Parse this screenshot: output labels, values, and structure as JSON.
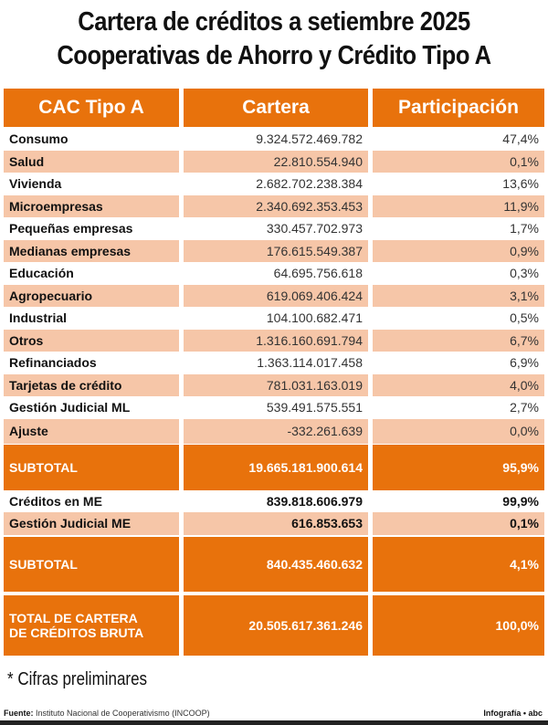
{
  "title": {
    "line1": "Cartera de créditos a setiembre 2025",
    "line2": "Cooperativas de Ahorro y Crédito Tipo A"
  },
  "headers": [
    "CAC Tipo A",
    "Cartera",
    "Participación"
  ],
  "rows": [
    {
      "label": "Consumo",
      "cartera": "9.324.572.469.782",
      "part": "47,4%"
    },
    {
      "label": "Salud",
      "cartera": "22.810.554.940",
      "part": "0,1%"
    },
    {
      "label": "Vivienda",
      "cartera": "2.682.702.238.384",
      "part": "13,6%"
    },
    {
      "label": "Microempresas",
      "cartera": "2.340.692.353.453",
      "part": "11,9%"
    },
    {
      "label": "Pequeñas empresas",
      "cartera": "330.457.702.973",
      "part": "1,7%"
    },
    {
      "label": "Medianas empresas",
      "cartera": "176.615.549.387",
      "part": "0,9%"
    },
    {
      "label": "Educación",
      "cartera": "64.695.756.618",
      "part": "0,3%"
    },
    {
      "label": "Agropecuario",
      "cartera": "619.069.406.424",
      "part": "3,1%"
    },
    {
      "label": "Industrial",
      "cartera": "104.100.682.471",
      "part": "0,5%"
    },
    {
      "label": "Otros",
      "cartera": "1.316.160.691.794",
      "part": "6,7%"
    },
    {
      "label": "Refinanciados",
      "cartera": "1.363.114.017.458",
      "part": "6,9%"
    },
    {
      "label": "Tarjetas de crédito",
      "cartera": "781.031.163.019",
      "part": "4,0%"
    },
    {
      "label": "Gestión Judicial ML",
      "cartera": "539.491.575.551",
      "part": "2,7%"
    },
    {
      "label": "Ajuste",
      "cartera": "-332.261.639",
      "part": "0,0%"
    }
  ],
  "subtotal_ml": {
    "label": "SUBTOTAL",
    "cartera": "19.665.181.900.614",
    "part": "95,9%"
  },
  "me_rows": [
    {
      "label": "Créditos en ME",
      "cartera": "839.818.606.979",
      "part": "99,9%"
    },
    {
      "label": "Gestión Judicial ME",
      "cartera": "616.853.653",
      "part": "0,1%"
    }
  ],
  "subtotal_me": {
    "label": "SUBTOTAL",
    "cartera": "840.435.460.632",
    "part": "4,1%"
  },
  "total": {
    "label_line1": "TOTAL DE CARTERA",
    "label_line2": "DE CRÉDITOS BRUTA",
    "cartera": "20.505.617.361.246",
    "part": "100,0%"
  },
  "note": "* Cifras preliminares",
  "footer": {
    "source_label": "Fuente:",
    "source": " Instituto Nacional de Cooperativismo (INCOOP)",
    "credit": "Infografía • abc"
  },
  "colors": {
    "orange": "#e8720c",
    "peach": "#f6c6a8"
  }
}
